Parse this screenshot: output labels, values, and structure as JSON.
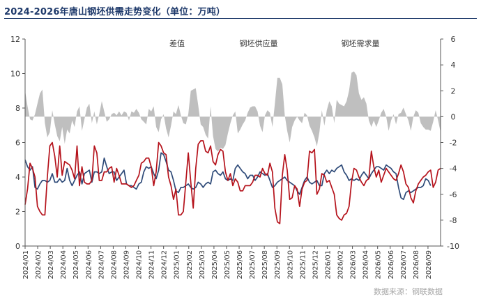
{
  "title": "2024-2026年唐山钢坯供需走势变化（单位：万吨）",
  "source": "数据来源：钢联数据",
  "colors": {
    "title": "#1f3a6b",
    "diff": "#bfbfbf",
    "supply": "#2e4a78",
    "demand": "#b5121b",
    "axis": "#555555"
  },
  "chart_data": {
    "type": "line",
    "title": "2024-2026年唐山钢坯供需走势变化（单位：万吨）",
    "unit": "万吨",
    "y_left": {
      "min": 0,
      "max": 12,
      "ticks": [
        0,
        2,
        4,
        6,
        8,
        10,
        12
      ]
    },
    "y_right": {
      "min": -10,
      "max": 6,
      "ticks": [
        -10,
        -8,
        -6,
        -4,
        -2,
        0,
        2,
        4,
        6
      ]
    },
    "x_ticks": [
      "2024/01",
      "2024/02",
      "2024/03",
      "2024/04",
      "2024/05",
      "2024/06",
      "2024/07",
      "2024/08",
      "2024/09",
      "2024/10",
      "2024/11",
      "2024/12",
      "2025/01",
      "2025/02",
      "2025/03",
      "2025/04",
      "2025/05",
      "2025/06",
      "2025/07",
      "2025/08",
      "2025/09",
      "2025/10",
      "2025/11",
      "2025/12",
      "2026/01",
      "2026/02",
      "2026/03",
      "2026/04",
      "2026/05",
      "2026/06",
      "2026/07",
      "2026/08",
      "2026/09"
    ],
    "legend_position": "top-center",
    "grid": false,
    "series": [
      {
        "name": "差值",
        "type": "area",
        "axis": "right",
        "color": "#bfbfbf",
        "values": [
          2,
          0.8,
          -0.2,
          -0.3,
          0.2,
          1,
          1.8,
          2.1,
          -0.5,
          -1.6,
          -1.2,
          0.5,
          -0.6,
          -1.5,
          -1.9,
          -0.8,
          -2.1,
          -1,
          -1.3,
          -0.3,
          -0.8,
          0.4,
          0.8,
          -1.1,
          -0.2,
          0.7,
          1,
          -0.5,
          0.4,
          -0.6,
          0.2,
          1.2,
          0.4,
          -0.4,
          -0.2,
          0.2,
          0.3,
          0.1,
          0.4,
          0.1,
          0.4,
          0.3,
          -0.3,
          0.4,
          0.3,
          0.6,
          0.3,
          -0.2,
          -0.4,
          -0.6,
          0.6,
          0.4,
          0.8,
          -0.8,
          -1.2,
          -0.2,
          0.2,
          -0.9,
          -1.6,
          -0.7,
          0.4,
          0.2,
          0.9,
          0.1,
          -0.5,
          -0.6,
          0.2,
          2,
          2.1,
          2.2,
          0.9,
          -0.6,
          -0.8,
          -1.4,
          -1.7,
          0.8,
          -1.5,
          -2.5,
          -2.7,
          -2.4,
          -2.5,
          -2.2,
          -1.3,
          -0.5,
          0.1,
          0.4,
          -1.3,
          -1,
          -0.6,
          -0.3,
          0.3,
          0.7,
          0.8,
          0.8,
          0.4,
          -0.7,
          -1.2,
          0.1,
          0.5,
          0.3,
          -0.8,
          1,
          3,
          3,
          2.5,
          0.1,
          -1.1,
          -2,
          -0.8,
          -0.3,
          0,
          -0.3,
          -0.5,
          0.3,
          0.1,
          -0.7,
          -1.1,
          -1.6,
          -2.3,
          -1.2,
          0.5,
          -0.7,
          0.5,
          1.2,
          0.8,
          -0.5,
          1.3,
          1,
          0.9,
          0.8,
          1.2,
          2,
          3.4,
          3.5,
          3.2,
          1.8,
          1.3,
          1.5,
          1,
          -0.3,
          -0.8,
          -0.3,
          -0.8,
          -0.3,
          0.3,
          0.6,
          0,
          -1.1,
          -0.3,
          0.2,
          -0.6,
          0.2,
          0.3,
          0.7,
          0.2,
          -0.3,
          -1.1,
          0,
          0.5,
          0.3,
          -0.5,
          -0.8,
          -1,
          -1,
          -1.1,
          -0.4,
          0.5,
          -0.3,
          -1.2
        ]
      },
      {
        "name": "钢坯供应量",
        "type": "line",
        "axis": "left",
        "color": "#2e4a78",
        "values": [
          5,
          4.6,
          4.4,
          4.6,
          3.4,
          3.3,
          3.6,
          3.8,
          3.8,
          3.7,
          3.8,
          4.2,
          3.7,
          3.7,
          3.9,
          3.7,
          3.8,
          4.5,
          3.8,
          3.5,
          3.8,
          4.1,
          4.3,
          3.6,
          4.2,
          4.3,
          4.4,
          3.7,
          4.3,
          4.3,
          4.2,
          4.3,
          5.1,
          4.6,
          4.2,
          4.3,
          4.3,
          3.8,
          4,
          4.2,
          4.4,
          3.6,
          3.5,
          3.5,
          3.4,
          3.3,
          3.6,
          3.7,
          4.3,
          4.6,
          4.5,
          4.6,
          4.2,
          3.9,
          4.4,
          5.4,
          5.3,
          4.9,
          4.4,
          4.3,
          3.8,
          3.2,
          3.1,
          3.4,
          3.4,
          3.5,
          3.6,
          3.4,
          3.3,
          3.4,
          3.7,
          3.6,
          3.4,
          3.6,
          3.7,
          3.6,
          4.3,
          4.4,
          4.2,
          4.1,
          4.3,
          3.9,
          3.8,
          3.9,
          3.8,
          4.5,
          4.7,
          4.5,
          4.3,
          4.2,
          3.9,
          4.1,
          4.1,
          3.8,
          4,
          4.3,
          4.2,
          4.1,
          4.2,
          3.8,
          3.4,
          3.5,
          3.7,
          3.8,
          3.9,
          4,
          3.8,
          3.7,
          3.6,
          3.5,
          3.2,
          3,
          3.4,
          3.8,
          4,
          3.7,
          3.6,
          3.7,
          3.8,
          3.5,
          3.5,
          4.2,
          4.4,
          4.2,
          4.4,
          4.3,
          4.5,
          4.6,
          4.7,
          4.3,
          4.1,
          3.8,
          3.9,
          3.8,
          3.9,
          3.8,
          4.1,
          4.3,
          4.1,
          3.9,
          4.2,
          4.4,
          4.6,
          4.6,
          4.5,
          4.4,
          4.7,
          4.6,
          4.5,
          4.3,
          4.2,
          3.4,
          2.8,
          2.7,
          3.1,
          3.2,
          3.1,
          3.2,
          3.3,
          3.4,
          3.4,
          3.5,
          3.9,
          3.8,
          3.5
        ]
      },
      {
        "name": "钢坯需求量",
        "type": "line",
        "axis": "left",
        "color": "#b5121b",
        "values": [
          2.4,
          3.3,
          4.8,
          4.5,
          4,
          2.3,
          2,
          1.8,
          1.8,
          4,
          5.8,
          6,
          5.2,
          4,
          5.8,
          4.1,
          4.9,
          4.8,
          4.7,
          4.4,
          3.9,
          5.8,
          3.5,
          4.6,
          3.7,
          3.6,
          3.6,
          3.8,
          5.8,
          5.4,
          3.8,
          3.8,
          4.3,
          4.3,
          4.5,
          4.6,
          3.7,
          4.5,
          4.1,
          3.6,
          3.6,
          3.6,
          3.5,
          3.4,
          3.5,
          3.8,
          4.1,
          4.8,
          4.9,
          5.1,
          5.1,
          4.6,
          3.5,
          4.3,
          6,
          5.8,
          5.4,
          5.3,
          4,
          3.5,
          2.7,
          3.3,
          1.8,
          1.8,
          2,
          3.7,
          5.4,
          3.7,
          2.2,
          4.5,
          5.9,
          6.1,
          6.1,
          5.5,
          5.4,
          5.8,
          4.9,
          4.7,
          5.3,
          5.6,
          5.5,
          4.3,
          3.8,
          4.2,
          3.5,
          3.9,
          3.7,
          3.2,
          3.2,
          3.5,
          3.5,
          3.5,
          3.7,
          4.1,
          4.1,
          4,
          4.5,
          4.2,
          4.1,
          4.8,
          4.3,
          2.2,
          1.4,
          1.3,
          4.1,
          5.3,
          4.4,
          2.7,
          2.8,
          3.5,
          3.3,
          2.3,
          3.3,
          3.7,
          3.8,
          5.5,
          5.4,
          5.6,
          3,
          3.3,
          4.2,
          4.1,
          3.7,
          3.8,
          3.4,
          3,
          1.8,
          1.6,
          1.5,
          1.8,
          1.9,
          2.3,
          3.7,
          4.5,
          4.4,
          4,
          3.7,
          3.5,
          3.8,
          3.9,
          5.5,
          4.6,
          4,
          4.4,
          3.7,
          4.1,
          4.5,
          4.3,
          4.1,
          3.9,
          3.8,
          4.2,
          4.7,
          4.3,
          3.6,
          3.4,
          2.8,
          2.5,
          3.2,
          3.6,
          3.8,
          4,
          4.1,
          4.3,
          4.4,
          3.4,
          3.7,
          4.4,
          4.5
        ]
      }
    ]
  }
}
